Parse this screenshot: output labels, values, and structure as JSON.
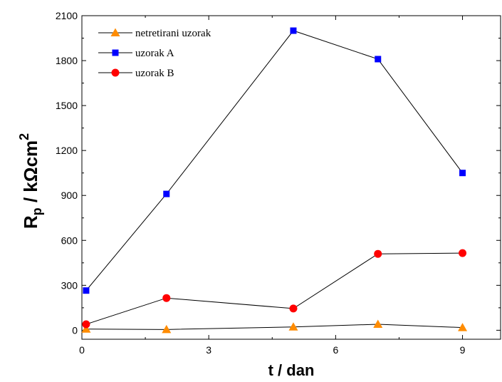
{
  "chart_data": {
    "type": "line",
    "xlabel": "t / dan",
    "ylabel_main": "R",
    "ylabel_sub": "p",
    "ylabel_rest": " / kΩcm",
    "ylabel_sup": "2",
    "xlim": [
      0,
      9.9
    ],
    "ylim": [
      -60,
      2100
    ],
    "xticks": [
      0,
      3,
      6,
      9
    ],
    "xtick_labels": [
      "0",
      "3",
      "6",
      "9"
    ],
    "yticks": [
      0,
      300,
      600,
      900,
      1200,
      1500,
      1800,
      2100
    ],
    "ytick_labels": [
      "0",
      "300",
      "600",
      "900",
      "1200",
      "1500",
      "1800",
      "2100"
    ],
    "grid": false,
    "legend_position": "top-left",
    "series": [
      {
        "name": "netretirani uzorak",
        "marker": "triangle",
        "color": "#ff8c00",
        "x": [
          0.1,
          2,
          5,
          7,
          9
        ],
        "y": [
          8,
          5,
          22,
          40,
          18
        ]
      },
      {
        "name": "uzorak A",
        "marker": "square",
        "color": "#0000ff",
        "x": [
          0.1,
          2,
          5,
          7,
          9
        ],
        "y": [
          265,
          910,
          2000,
          1810,
          1050
        ]
      },
      {
        "name": "uzorak B",
        "marker": "circle",
        "color": "#ff0000",
        "x": [
          0.1,
          2,
          5,
          7,
          9
        ],
        "y": [
          40,
          215,
          145,
          510,
          515
        ]
      }
    ]
  }
}
